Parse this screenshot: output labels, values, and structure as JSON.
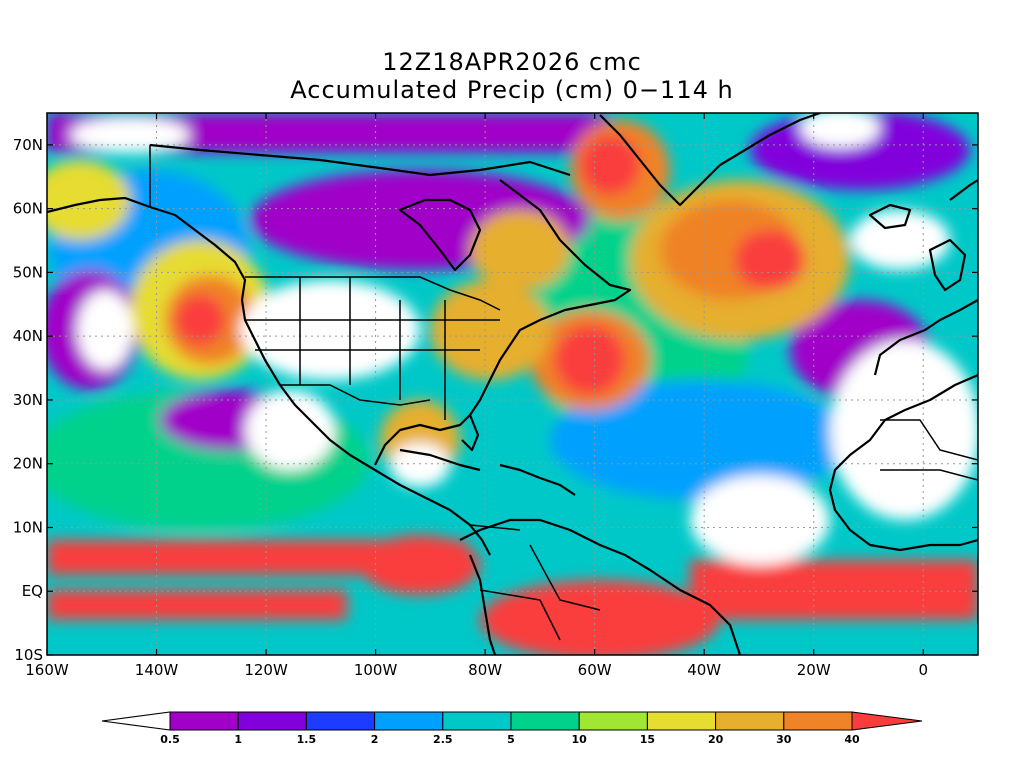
{
  "title": {
    "line1": "12Z18APR2026 cmc",
    "line2": "Accumulated Precip (cm) 0−114 h"
  },
  "map": {
    "lat_labels": [
      "70N",
      "60N",
      "50N",
      "40N",
      "30N",
      "20N",
      "10N",
      "EQ",
      "10S"
    ],
    "lon_labels": [
      "160W",
      "140W",
      "120W",
      "100W",
      "80W",
      "60W",
      "40W",
      "20W",
      "0"
    ],
    "extent": {
      "lon_min": -160,
      "lon_max": 10,
      "lat_min": -10,
      "lat_max": 75
    }
  },
  "colorbar": {
    "labels": [
      "0.5",
      "1",
      "1.5",
      "2",
      "2.5",
      "5",
      "10",
      "15",
      "20",
      "30",
      "40"
    ],
    "colors": [
      "#ffffff",
      "#a000c8",
      "#8200dc",
      "#1e3cff",
      "#00a0ff",
      "#00c8c8",
      "#00d28c",
      "#a0e632",
      "#e6dc32",
      "#e6af2d",
      "#f08228",
      "#fa3c3c"
    ]
  },
  "precip_regions": [
    {
      "name": "tropical-pacific-band",
      "level": 11
    },
    {
      "name": "equatorial-atlantic-band",
      "level": 11
    },
    {
      "name": "amazon",
      "level": 11
    },
    {
      "name": "north-atlantic-storm",
      "level": 9
    },
    {
      "name": "gulf-stream",
      "level": 10
    },
    {
      "name": "greenland-east",
      "level": 11
    },
    {
      "name": "gulf-of-alaska",
      "level": 9
    },
    {
      "name": "eastern-us",
      "level": 9
    }
  ]
}
